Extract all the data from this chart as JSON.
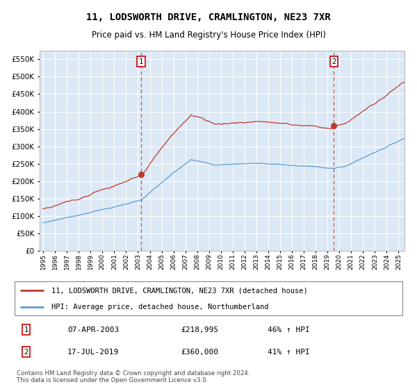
{
  "title": "11, LODSWORTH DRIVE, CRAMLINGTON, NE23 7XR",
  "subtitle": "Price paid vs. HM Land Registry's House Price Index (HPI)",
  "legend_line1": "11, LODSWORTH DRIVE, CRAMLINGTON, NE23 7XR (detached house)",
  "legend_line2": "HPI: Average price, detached house, Northumberland",
  "annotation1_date": "07-APR-2003",
  "annotation1_price": "£218,995",
  "annotation1_hpi": "46% ↑ HPI",
  "annotation2_date": "17-JUL-2019",
  "annotation2_price": "£360,000",
  "annotation2_hpi": "41% ↑ HPI",
  "footer": "Contains HM Land Registry data © Crown copyright and database right 2024.\nThis data is licensed under the Open Government Licence v3.0.",
  "hpi_color": "#5b9bd5",
  "price_color": "#c0392b",
  "dashed_line_color": "#c0392b",
  "plot_bg_color": "#dce9f5",
  "grid_color": "#ffffff",
  "ylim": [
    0,
    575000
  ],
  "yticks": [
    0,
    50000,
    100000,
    150000,
    200000,
    250000,
    300000,
    350000,
    400000,
    450000,
    500000,
    550000
  ],
  "sale1_year": 2003.27,
  "sale1_price": 218995,
  "sale2_year": 2019.54,
  "sale2_price": 360000,
  "xmin": 1994.7,
  "xmax": 2025.5
}
